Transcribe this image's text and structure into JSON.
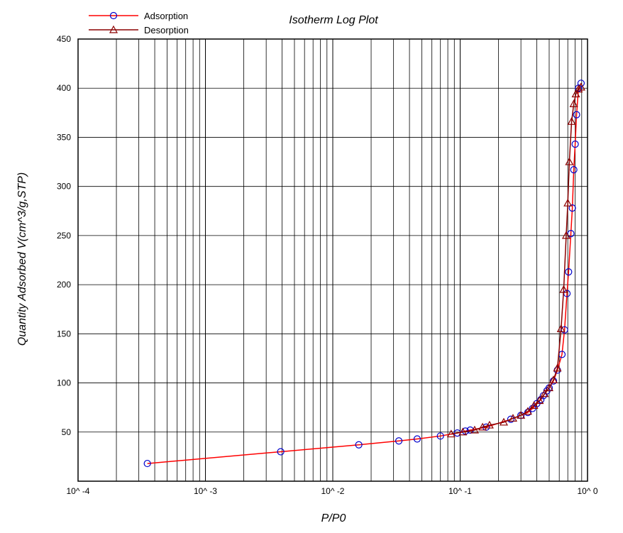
{
  "chart_data": {
    "type": "line",
    "title": "Isotherm Log Plot",
    "xlabel": "P/P0",
    "ylabel": "Quantity Adsorbed V(cm^3/g,STP)",
    "x_scale": "log",
    "xlim": [
      0.0001,
      1
    ],
    "ylim": [
      0,
      450
    ],
    "x_tick_labels": [
      "10^ -4",
      "10^ -3",
      "10^ -2",
      "10^ -1",
      "10^ 0"
    ],
    "y_tick_values": [
      50,
      100,
      150,
      200,
      250,
      300,
      350,
      400,
      450
    ],
    "grid": true,
    "legend_position": "top-left",
    "series": [
      {
        "name": "Adsorption",
        "color": "#ff0000",
        "marker": "circle",
        "marker_color": "#0000cc",
        "x": [
          0.00035,
          0.0039,
          0.016,
          0.033,
          0.046,
          0.07,
          0.095,
          0.11,
          0.12,
          0.16,
          0.25,
          0.3,
          0.34,
          0.37,
          0.4,
          0.43,
          0.45,
          0.48,
          0.5,
          0.54,
          0.58,
          0.63,
          0.66,
          0.69,
          0.71,
          0.74,
          0.76,
          0.78,
          0.8,
          0.82,
          0.85,
          0.89
        ],
        "y": [
          18,
          30,
          37,
          41,
          43,
          46,
          49,
          51,
          52,
          55,
          63,
          67,
          70,
          74,
          79,
          83,
          87,
          92,
          95,
          102,
          113,
          129,
          154,
          191,
          213,
          252,
          278,
          317,
          343,
          373,
          400,
          405
        ]
      },
      {
        "name": "Desorption",
        "color": "#8b0000",
        "marker": "triangle",
        "marker_color": "#8b0000",
        "x": [
          0.89,
          0.85,
          0.81,
          0.78,
          0.75,
          0.72,
          0.7,
          0.68,
          0.65,
          0.62,
          0.58,
          0.54,
          0.5,
          0.46,
          0.42,
          0.38,
          0.34,
          0.3,
          0.26,
          0.22,
          0.17,
          0.15,
          0.13,
          0.105,
          0.085
        ],
        "y": [
          401,
          399,
          394,
          384,
          366,
          325,
          283,
          250,
          195,
          155,
          115,
          103,
          95,
          89,
          82,
          77,
          71,
          67,
          64,
          60,
          57,
          55,
          52,
          50,
          48
        ]
      }
    ]
  }
}
